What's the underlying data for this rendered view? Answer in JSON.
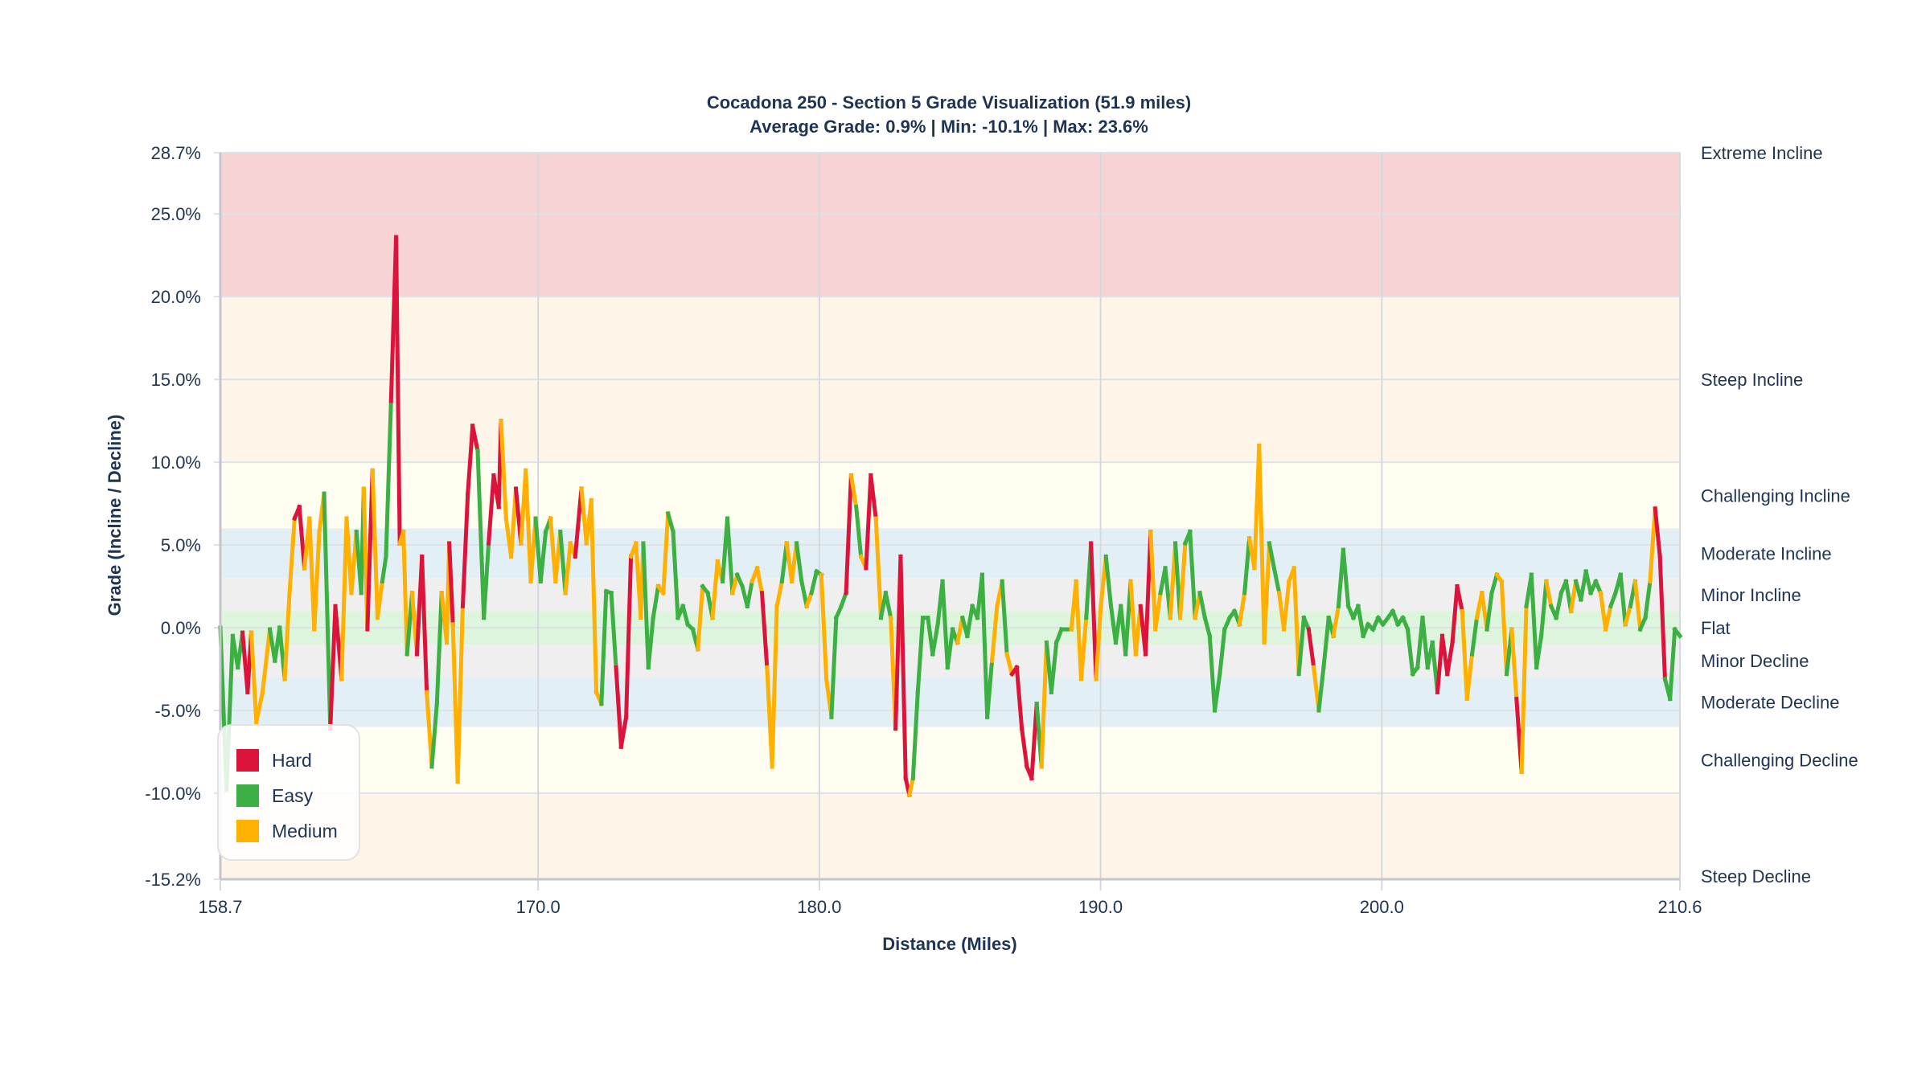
{
  "chart_data": {
    "type": "line",
    "title": "Cocadona 250 - Section 5 Grade Visualization (51.9 miles)",
    "subtitle": "Average Grade: 0.9% | Min: -10.1% | Max: 23.6%",
    "xlabel": "Distance (Miles)",
    "ylabel": "Grade (Incline / Decline)",
    "xlim": [
      158.7,
      210.6
    ],
    "ylim": [
      -15.2,
      28.7
    ],
    "x_ticks": [
      "158.7",
      "170.0",
      "180.0",
      "190.0",
      "200.0",
      "210.6"
    ],
    "y_ticks": [
      "28.7%",
      "25.0%",
      "20.0%",
      "15.0%",
      "10.0%",
      "5.0%",
      "0.0%",
      "-5.0%",
      "-10.0%",
      "-15.2%"
    ],
    "grid": true,
    "legend_position": "bottom-left",
    "difficulty_colors": {
      "H": "#dc143c",
      "E": "#3cb043",
      "M": "#ffb000"
    },
    "legend": [
      {
        "code": "H",
        "label": "Hard",
        "color": "#dc143c"
      },
      {
        "code": "E",
        "label": "Easy",
        "color": "#3cb043"
      },
      {
        "code": "M",
        "label": "Medium",
        "color": "#ffb000"
      }
    ],
    "zones": [
      {
        "label": "Extreme Incline",
        "range": [
          20,
          40
        ],
        "color": "#f8d3d3"
      },
      {
        "label": "Steep Incline",
        "range": [
          10,
          20
        ],
        "color": "#fdf5e8"
      },
      {
        "label": "Challenging Incline",
        "range": [
          6,
          10
        ],
        "color": "#fffef0"
      },
      {
        "label": "Moderate Incline",
        "range": [
          3,
          6
        ],
        "color": "#e2eff5"
      },
      {
        "label": "Minor Incline",
        "range": [
          1,
          3
        ],
        "color": "#efefef"
      },
      {
        "label": "Flat",
        "range": [
          -1,
          1
        ],
        "color": "#dcf5dc"
      },
      {
        "label": "Minor Decline",
        "range": [
          -3,
          -1
        ],
        "color": "#efefef"
      },
      {
        "label": "Moderate Decline",
        "range": [
          -6,
          -3
        ],
        "color": "#e2eff5"
      },
      {
        "label": "Challenging Decline",
        "range": [
          -10,
          -6
        ],
        "color": "#fffef0"
      },
      {
        "label": "Steep Decline",
        "range": [
          -20,
          -10
        ],
        "color": "#fdf5e8"
      }
    ],
    "distance": [
      158.7,
      158.92,
      159.14,
      159.32,
      159.49,
      159.67,
      159.8,
      159.98,
      160.2,
      160.46,
      160.64,
      160.81,
      160.99,
      161.16,
      161.34,
      161.51,
      161.69,
      161.87,
      162.04,
      162.22,
      162.39,
      162.61,
      162.79,
      163.01,
      163.19,
      163.36,
      163.54,
      163.71,
      163.8,
      163.93,
      164.11,
      164.29,
      164.46,
      164.59,
      164.77,
      164.95,
      165.08,
      165.21,
      165.34,
      165.52,
      165.69,
      165.87,
      166.04,
      166.22,
      166.4,
      166.57,
      166.75,
      166.84,
      166.97,
      167.14,
      167.32,
      167.5,
      167.67,
      167.85,
      168.07,
      168.24,
      168.42,
      168.6,
      168.68,
      168.86,
      169.04,
      169.21,
      169.39,
      169.56,
      169.74,
      169.91,
      170.09,
      170.27,
      170.44,
      170.62,
      170.79,
      170.97,
      171.15,
      171.32,
      171.54,
      171.72,
      171.89,
      172.07,
      172.25,
      172.42,
      172.6,
      172.77,
      172.95,
      173.13,
      173.3,
      173.48,
      173.65,
      173.74,
      173.92,
      174.09,
      174.27,
      174.45,
      174.62,
      174.8,
      174.97,
      175.15,
      175.32,
      175.5,
      175.68,
      175.85,
      176.03,
      176.2,
      176.38,
      176.56,
      176.73,
      176.91,
      177.08,
      177.26,
      177.44,
      177.61,
      177.79,
      177.96,
      178.14,
      178.32,
      178.49,
      178.67,
      178.84,
      179.02,
      179.19,
      179.37,
      179.55,
      179.72,
      179.9,
      180.07,
      180.25,
      180.43,
      180.6,
      180.78,
      180.95,
      181.13,
      181.31,
      181.48,
      181.66,
      181.83,
      182.01,
      182.19,
      182.36,
      182.54,
      182.71,
      182.89,
      183.07,
      183.2,
      183.33,
      183.5,
      183.68,
      183.86,
      184.03,
      184.21,
      184.38,
      184.56,
      184.74,
      184.91,
      185.09,
      185.26,
      185.44,
      185.62,
      185.79,
      185.97,
      186.14,
      186.32,
      186.5,
      186.67,
      186.85,
      187.02,
      187.2,
      187.38,
      187.55,
      187.73,
      187.9,
      188.08,
      188.25,
      188.43,
      188.61,
      188.78,
      188.96,
      189.13,
      189.31,
      189.49,
      189.66,
      189.84,
      190.01,
      190.19,
      190.37,
      190.54,
      190.72,
      190.89,
      191.07,
      191.25,
      191.42,
      191.6,
      191.78,
      191.95,
      192.13,
      192.3,
      192.48,
      192.66,
      192.83,
      193.01,
      193.18,
      193.36,
      193.53,
      193.71,
      193.88,
      194.06,
      194.24,
      194.41,
      194.59,
      194.76,
      194.94,
      195.12,
      195.29,
      195.47,
      195.64,
      195.82,
      196.0,
      196.17,
      196.35,
      196.52,
      196.7,
      196.88,
      197.05,
      197.23,
      197.4,
      197.58,
      197.76,
      197.93,
      198.11,
      198.28,
      198.46,
      198.63,
      198.81,
      198.99,
      199.16,
      199.34,
      199.51,
      199.69,
      199.87,
      200.04,
      200.22,
      200.39,
      200.57,
      200.75,
      200.92,
      201.1,
      201.27,
      201.45,
      201.63,
      201.8,
      201.98,
      202.15,
      202.33,
      202.51,
      202.68,
      202.86,
      203.03,
      203.21,
      203.38,
      203.56,
      203.74,
      203.91,
      204.09,
      204.26,
      204.44,
      204.62,
      204.79,
      204.97,
      205.14,
      205.32,
      205.5,
      205.67,
      205.85,
      206.02,
      206.2,
      206.38,
      206.55,
      206.73,
      206.9,
      207.08,
      207.26,
      207.43,
      207.61,
      207.78,
      207.96,
      208.14,
      208.31,
      208.49,
      208.66,
      208.84,
      209.01,
      209.19,
      209.37,
      209.54,
      209.72,
      209.89,
      210.07,
      210.25,
      210.42,
      210.6
    ],
    "grade": [
      0.0,
      -9.8,
      -0.5,
      -2.4,
      -0.3,
      -3.9,
      -0.3,
      -5.7,
      -3.9,
      -0.1,
      -2.0,
      0.0,
      -3.1,
      2.1,
      6.6,
      7.3,
      3.6,
      6.6,
      -0.1,
      5.8,
      8.1,
      -6.1,
      1.3,
      -3.1,
      6.6,
      2.1,
      5.8,
      2.1,
      8.4,
      -0.1,
      9.5,
      0.6,
      2.8,
      4.3,
      13.7,
      23.6,
      5.1,
      5.8,
      -1.6,
      2.1,
      -1.6,
      4.3,
      -3.9,
      -8.4,
      -4.6,
      2.1,
      -0.9,
      5.1,
      0.2,
      -9.3,
      1.3,
      8.1,
      12.2,
      10.7,
      0.6,
      5.1,
      9.2,
      7.3,
      12.5,
      6.6,
      4.3,
      8.4,
      5.1,
      9.5,
      2.8,
      6.6,
      2.8,
      5.8,
      6.6,
      2.8,
      5.8,
      2.1,
      5.1,
      4.3,
      8.4,
      5.1,
      7.7,
      -3.9,
      -4.6,
      2.2,
      2.1,
      -2.4,
      -7.2,
      -5.4,
      4.3,
      5.1,
      0.6,
      5.1,
      -2.4,
      0.6,
      2.5,
      2.1,
      6.9,
      5.8,
      0.6,
      1.3,
      0.2,
      -0.1,
      -1.3,
      2.5,
      2.1,
      0.6,
      4.0,
      2.8,
      6.6,
      2.1,
      3.2,
      2.5,
      1.3,
      2.8,
      3.6,
      2.1,
      -2.4,
      -8.4,
      1.3,
      2.8,
      5.1,
      2.8,
      5.1,
      2.8,
      1.3,
      2.1,
      3.4,
      3.2,
      -3.1,
      -5.4,
      0.6,
      1.3,
      2.1,
      9.2,
      7.3,
      4.3,
      3.6,
      9.2,
      6.6,
      0.6,
      2.1,
      0.6,
      -6.1,
      4.3,
      -9.1,
      -10.1,
      -9.1,
      -3.9,
      0.6,
      0.6,
      -1.6,
      0.2,
      2.8,
      -2.4,
      -0.1,
      -0.9,
      0.6,
      -0.5,
      1.3,
      0.6,
      3.2,
      -5.4,
      -2.0,
      1.3,
      2.8,
      -1.6,
      -2.8,
      -2.4,
      -6.1,
      -8.4,
      -9.1,
      -4.6,
      -8.4,
      -0.9,
      -3.9,
      -0.9,
      -0.1,
      -0.1,
      -0.1,
      2.8,
      -3.1,
      0.6,
      5.1,
      -3.1,
      1.3,
      4.3,
      1.3,
      -0.9,
      1.3,
      -1.6,
      2.8,
      -1.6,
      1.3,
      -1.6,
      5.8,
      -0.1,
      2.1,
      3.6,
      0.6,
      5.1,
      0.6,
      5.1,
      5.8,
      0.6,
      2.1,
      0.6,
      -0.5,
      -5.0,
      -2.8,
      -0.1,
      0.6,
      1.0,
      0.2,
      2.1,
      5.4,
      3.6,
      11.0,
      -0.9,
      5.1,
      3.6,
      2.1,
      -0.1,
      2.8,
      3.6,
      -2.8,
      0.6,
      -0.1,
      -2.4,
      -5.0,
      -2.4,
      0.6,
      -0.5,
      1.3,
      4.7,
      1.3,
      0.6,
      1.3,
      -0.5,
      0.2,
      -0.1,
      0.6,
      0.2,
      0.6,
      1.0,
      0.2,
      0.6,
      -0.1,
      -2.8,
      -2.4,
      0.6,
      -2.4,
      -0.9,
      -3.9,
      -0.5,
      -2.8,
      -0.9,
      2.5,
      1.0,
      -4.3,
      -1.6,
      0.6,
      2.1,
      -0.1,
      2.1,
      3.2,
      2.8,
      -2.8,
      -0.1,
      -4.3,
      -8.7,
      1.3,
      3.2,
      -2.4,
      -0.5,
      2.8,
      1.3,
      0.6,
      2.1,
      2.8,
      1.0,
      2.8,
      1.7,
      3.4,
      2.1,
      2.8,
      2.1,
      -0.1,
      1.3,
      2.1,
      3.2,
      0.2,
      1.3,
      2.8,
      -0.1,
      0.6,
      2.8,
      7.2,
      4.3,
      -3.1,
      -4.3,
      -0.1,
      -0.5
    ],
    "difficulty": [
      "H",
      "E",
      "E",
      "E",
      "E",
      "H",
      "H",
      "M",
      "M",
      "M",
      "E",
      "E",
      "E",
      "M",
      "M",
      "H",
      "H",
      "M",
      "M",
      "M",
      "M",
      "E",
      "H",
      "H",
      "M",
      "M",
      "M",
      "E",
      "E",
      "M",
      "H",
      "M",
      "M",
      "E",
      "E",
      "H",
      "H",
      "M",
      "M",
      "E",
      "M",
      "H",
      "H",
      "M",
      "E",
      "E",
      "M",
      "M",
      "H",
      "M",
      "M",
      "H",
      "H",
      "H",
      "E",
      "E",
      "H",
      "H",
      "H",
      "M",
      "M",
      "M",
      "H",
      "M",
      "M",
      "M",
      "E",
      "E",
      "E",
      "M",
      "M",
      "E",
      "M",
      "M",
      "H",
      "M",
      "M",
      "M",
      "M",
      "E",
      "E",
      "E",
      "H",
      "H",
      "H",
      "M",
      "M",
      "M",
      "E",
      "E",
      "E",
      "M",
      "M",
      "E",
      "E",
      "E",
      "E",
      "E",
      "E",
      "M",
      "E",
      "E",
      "M",
      "M",
      "E",
      "E",
      "M",
      "E",
      "E",
      "E",
      "M",
      "M",
      "H",
      "M",
      "M",
      "M",
      "E",
      "M",
      "M",
      "E",
      "E",
      "M",
      "E",
      "E",
      "M",
      "M",
      "E",
      "E",
      "E",
      "H",
      "M",
      "E",
      "M",
      "H",
      "H",
      "M",
      "E",
      "E",
      "M",
      "H",
      "H",
      "H",
      "M",
      "E",
      "E",
      "E",
      "E",
      "E",
      "E",
      "E",
      "E",
      "E",
      "M",
      "E",
      "E",
      "E",
      "E",
      "E",
      "E",
      "M",
      "M",
      "E",
      "M",
      "H",
      "H",
      "H",
      "H",
      "H",
      "E",
      "M",
      "E",
      "E",
      "E",
      "E",
      "E",
      "M",
      "M",
      "M",
      "E",
      "H",
      "M",
      "M",
      "E",
      "E",
      "E",
      "E",
      "E",
      "M",
      "M",
      "H",
      "H",
      "M",
      "M",
      "E",
      "E",
      "M",
      "E",
      "M",
      "E",
      "E",
      "M",
      "E",
      "E",
      "E",
      "E",
      "E",
      "E",
      "E",
      "E",
      "M",
      "E",
      "M",
      "M",
      "M",
      "M",
      "E",
      "E",
      "M",
      "M",
      "M",
      "M",
      "E",
      "E",
      "H",
      "M",
      "E",
      "E",
      "E",
      "M",
      "E",
      "E",
      "E",
      "E",
      "E",
      "E",
      "E",
      "E",
      "E",
      "E",
      "E",
      "E",
      "E",
      "E",
      "E",
      "E",
      "E",
      "E",
      "E",
      "E",
      "H",
      "H",
      "H",
      "H",
      "H",
      "M",
      "M",
      "E",
      "M",
      "M",
      "E",
      "E",
      "M",
      "M",
      "E",
      "M",
      "H",
      "M",
      "E",
      "E",
      "E",
      "E",
      "M",
      "E",
      "E",
      "E",
      "E",
      "M",
      "E",
      "E",
      "E",
      "E",
      "E",
      "M",
      "M",
      "E",
      "E",
      "E",
      "M",
      "E",
      "M",
      "E",
      "E",
      "M",
      "H",
      "H",
      "E",
      "E",
      "E",
      "E"
    ]
  }
}
